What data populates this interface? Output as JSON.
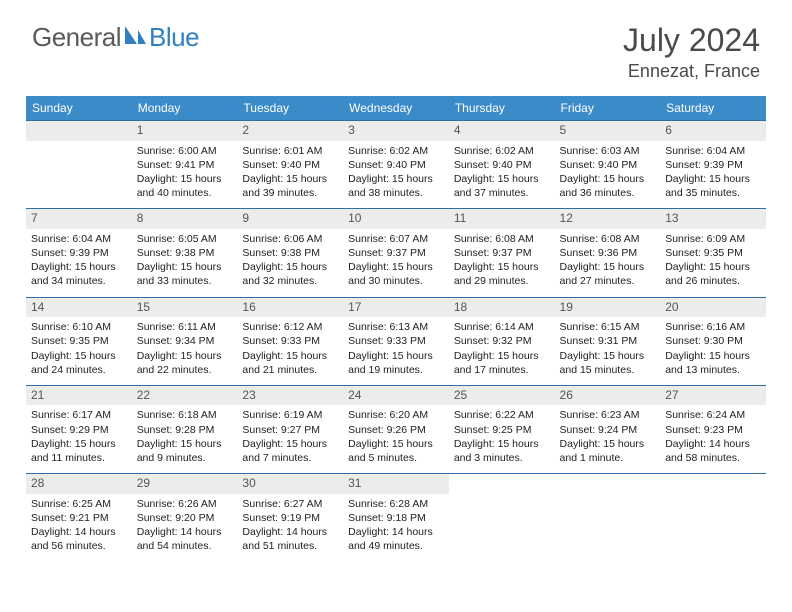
{
  "brand": {
    "part1": "General",
    "part2": "Blue"
  },
  "title": "July 2024",
  "location": "Ennezat, France",
  "colors": {
    "header_bg": "#3b8bc9",
    "border": "#2f6fa8",
    "daybar": "#ececec"
  },
  "weekdays": [
    "Sunday",
    "Monday",
    "Tuesday",
    "Wednesday",
    "Thursday",
    "Friday",
    "Saturday"
  ],
  "start_offset": 1,
  "days": [
    {
      "n": "1",
      "sr": "6:00 AM",
      "ss": "9:41 PM",
      "dl": "15 hours and 40 minutes."
    },
    {
      "n": "2",
      "sr": "6:01 AM",
      "ss": "9:40 PM",
      "dl": "15 hours and 39 minutes."
    },
    {
      "n": "3",
      "sr": "6:02 AM",
      "ss": "9:40 PM",
      "dl": "15 hours and 38 minutes."
    },
    {
      "n": "4",
      "sr": "6:02 AM",
      "ss": "9:40 PM",
      "dl": "15 hours and 37 minutes."
    },
    {
      "n": "5",
      "sr": "6:03 AM",
      "ss": "9:40 PM",
      "dl": "15 hours and 36 minutes."
    },
    {
      "n": "6",
      "sr": "6:04 AM",
      "ss": "9:39 PM",
      "dl": "15 hours and 35 minutes."
    },
    {
      "n": "7",
      "sr": "6:04 AM",
      "ss": "9:39 PM",
      "dl": "15 hours and 34 minutes."
    },
    {
      "n": "8",
      "sr": "6:05 AM",
      "ss": "9:38 PM",
      "dl": "15 hours and 33 minutes."
    },
    {
      "n": "9",
      "sr": "6:06 AM",
      "ss": "9:38 PM",
      "dl": "15 hours and 32 minutes."
    },
    {
      "n": "10",
      "sr": "6:07 AM",
      "ss": "9:37 PM",
      "dl": "15 hours and 30 minutes."
    },
    {
      "n": "11",
      "sr": "6:08 AM",
      "ss": "9:37 PM",
      "dl": "15 hours and 29 minutes."
    },
    {
      "n": "12",
      "sr": "6:08 AM",
      "ss": "9:36 PM",
      "dl": "15 hours and 27 minutes."
    },
    {
      "n": "13",
      "sr": "6:09 AM",
      "ss": "9:35 PM",
      "dl": "15 hours and 26 minutes."
    },
    {
      "n": "14",
      "sr": "6:10 AM",
      "ss": "9:35 PM",
      "dl": "15 hours and 24 minutes."
    },
    {
      "n": "15",
      "sr": "6:11 AM",
      "ss": "9:34 PM",
      "dl": "15 hours and 22 minutes."
    },
    {
      "n": "16",
      "sr": "6:12 AM",
      "ss": "9:33 PM",
      "dl": "15 hours and 21 minutes."
    },
    {
      "n": "17",
      "sr": "6:13 AM",
      "ss": "9:33 PM",
      "dl": "15 hours and 19 minutes."
    },
    {
      "n": "18",
      "sr": "6:14 AM",
      "ss": "9:32 PM",
      "dl": "15 hours and 17 minutes."
    },
    {
      "n": "19",
      "sr": "6:15 AM",
      "ss": "9:31 PM",
      "dl": "15 hours and 15 minutes."
    },
    {
      "n": "20",
      "sr": "6:16 AM",
      "ss": "9:30 PM",
      "dl": "15 hours and 13 minutes."
    },
    {
      "n": "21",
      "sr": "6:17 AM",
      "ss": "9:29 PM",
      "dl": "15 hours and 11 minutes."
    },
    {
      "n": "22",
      "sr": "6:18 AM",
      "ss": "9:28 PM",
      "dl": "15 hours and 9 minutes."
    },
    {
      "n": "23",
      "sr": "6:19 AM",
      "ss": "9:27 PM",
      "dl": "15 hours and 7 minutes."
    },
    {
      "n": "24",
      "sr": "6:20 AM",
      "ss": "9:26 PM",
      "dl": "15 hours and 5 minutes."
    },
    {
      "n": "25",
      "sr": "6:22 AM",
      "ss": "9:25 PM",
      "dl": "15 hours and 3 minutes."
    },
    {
      "n": "26",
      "sr": "6:23 AM",
      "ss": "9:24 PM",
      "dl": "15 hours and 1 minute."
    },
    {
      "n": "27",
      "sr": "6:24 AM",
      "ss": "9:23 PM",
      "dl": "14 hours and 58 minutes."
    },
    {
      "n": "28",
      "sr": "6:25 AM",
      "ss": "9:21 PM",
      "dl": "14 hours and 56 minutes."
    },
    {
      "n": "29",
      "sr": "6:26 AM",
      "ss": "9:20 PM",
      "dl": "14 hours and 54 minutes."
    },
    {
      "n": "30",
      "sr": "6:27 AM",
      "ss": "9:19 PM",
      "dl": "14 hours and 51 minutes."
    },
    {
      "n": "31",
      "sr": "6:28 AM",
      "ss": "9:18 PM",
      "dl": "14 hours and 49 minutes."
    }
  ],
  "labels": {
    "sunrise": "Sunrise:",
    "sunset": "Sunset:",
    "daylight": "Daylight:"
  }
}
